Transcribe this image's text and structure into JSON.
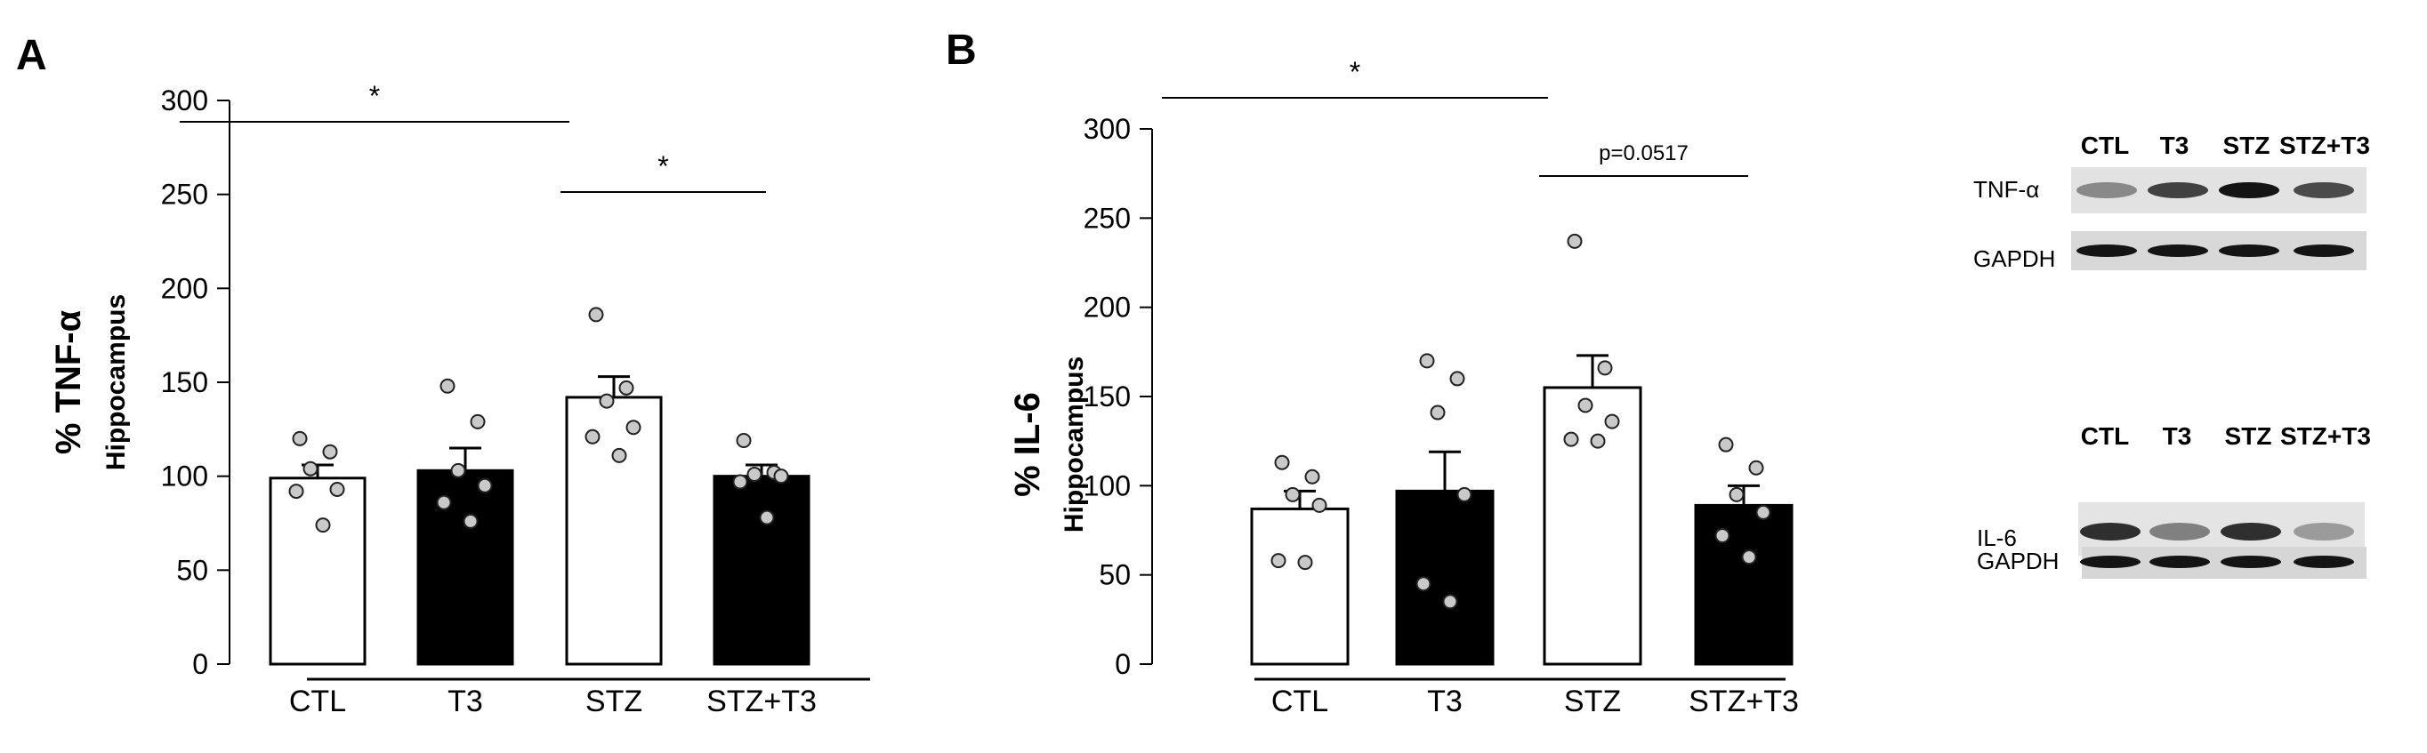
{
  "colors": {
    "bar_black": "#000000",
    "bar_white": "#ffffff",
    "point_fill": "#c9c9c9",
    "blot_band": "#1a1a1a",
    "blot_bg": "#dcdcdc"
  },
  "panels": [
    {
      "letter": "A",
      "ylabel_main": "% TNF-α",
      "ylabel_sub": "Hippocampus"
    },
    {
      "letter": "B",
      "ylabel_main": "% IL-6",
      "ylabel_sub": "Hippocampus"
    }
  ],
  "chart_data": [
    {
      "type": "bar",
      "title": "",
      "ylabel": "% TNF-α Hippocampus",
      "xlabel": "",
      "categories": [
        "CTL",
        "T3",
        "STZ",
        "STZ+T3"
      ],
      "values": [
        99,
        103,
        142,
        100
      ],
      "sem": [
        7,
        12,
        11,
        6
      ],
      "fills": [
        "white",
        "black",
        "white",
        "black"
      ],
      "points": [
        [
          120,
          113,
          104,
          93,
          92,
          74
        ],
        [
          148,
          129,
          103,
          95,
          86,
          76
        ],
        [
          186,
          147,
          140,
          126,
          121,
          111
        ],
        [
          119,
          102,
          101,
          100,
          97,
          78
        ]
      ],
      "ylim": [
        0,
        300
      ],
      "yticks": [
        0,
        50,
        100,
        150,
        200,
        250,
        300
      ],
      "significance": [
        {
          "from": 0,
          "to": 2,
          "label": "*"
        },
        {
          "from": 2,
          "to": 3,
          "label": "*"
        }
      ]
    },
    {
      "type": "bar",
      "title": "",
      "ylabel": "% IL-6 Hippocampus",
      "xlabel": "",
      "categories": [
        "CTL",
        "T3",
        "STZ",
        "STZ+T3"
      ],
      "values": [
        87,
        97,
        155,
        89
      ],
      "sem": [
        10,
        22,
        18,
        11
      ],
      "fills": [
        "white",
        "black",
        "white",
        "black"
      ],
      "points": [
        [
          113,
          105,
          95,
          89,
          58,
          57
        ],
        [
          170,
          160,
          141,
          95,
          45,
          35
        ],
        [
          237,
          166,
          145,
          136,
          126,
          125
        ],
        [
          123,
          110,
          95,
          85,
          72,
          60
        ]
      ],
      "ylim": [
        0,
        300
      ],
      "yticks": [
        0,
        50,
        100,
        150,
        200,
        250,
        300
      ],
      "significance": [
        {
          "from": 0,
          "to": 2,
          "label": "*"
        },
        {
          "from": 2,
          "to": 3,
          "label": "p=0.0517"
        }
      ]
    }
  ],
  "blots": [
    {
      "headers": [
        "CTL",
        "T3",
        "STZ",
        "STZ+T3"
      ],
      "rows": [
        {
          "label": "TNF-α",
          "intensity": [
            0.35,
            0.75,
            1.0,
            0.7
          ]
        },
        {
          "label": "GAPDH",
          "intensity": [
            1.0,
            1.0,
            1.0,
            1.0
          ]
        }
      ]
    },
    {
      "headers": [
        "CTL",
        "T3",
        "STZ",
        "STZ+T3"
      ],
      "rows": [
        {
          "label": "IL-6",
          "intensity": [
            0.85,
            0.4,
            0.85,
            0.25
          ]
        },
        {
          "label": "GAPDH",
          "intensity": [
            1.0,
            1.0,
            1.0,
            1.0
          ]
        }
      ]
    }
  ]
}
